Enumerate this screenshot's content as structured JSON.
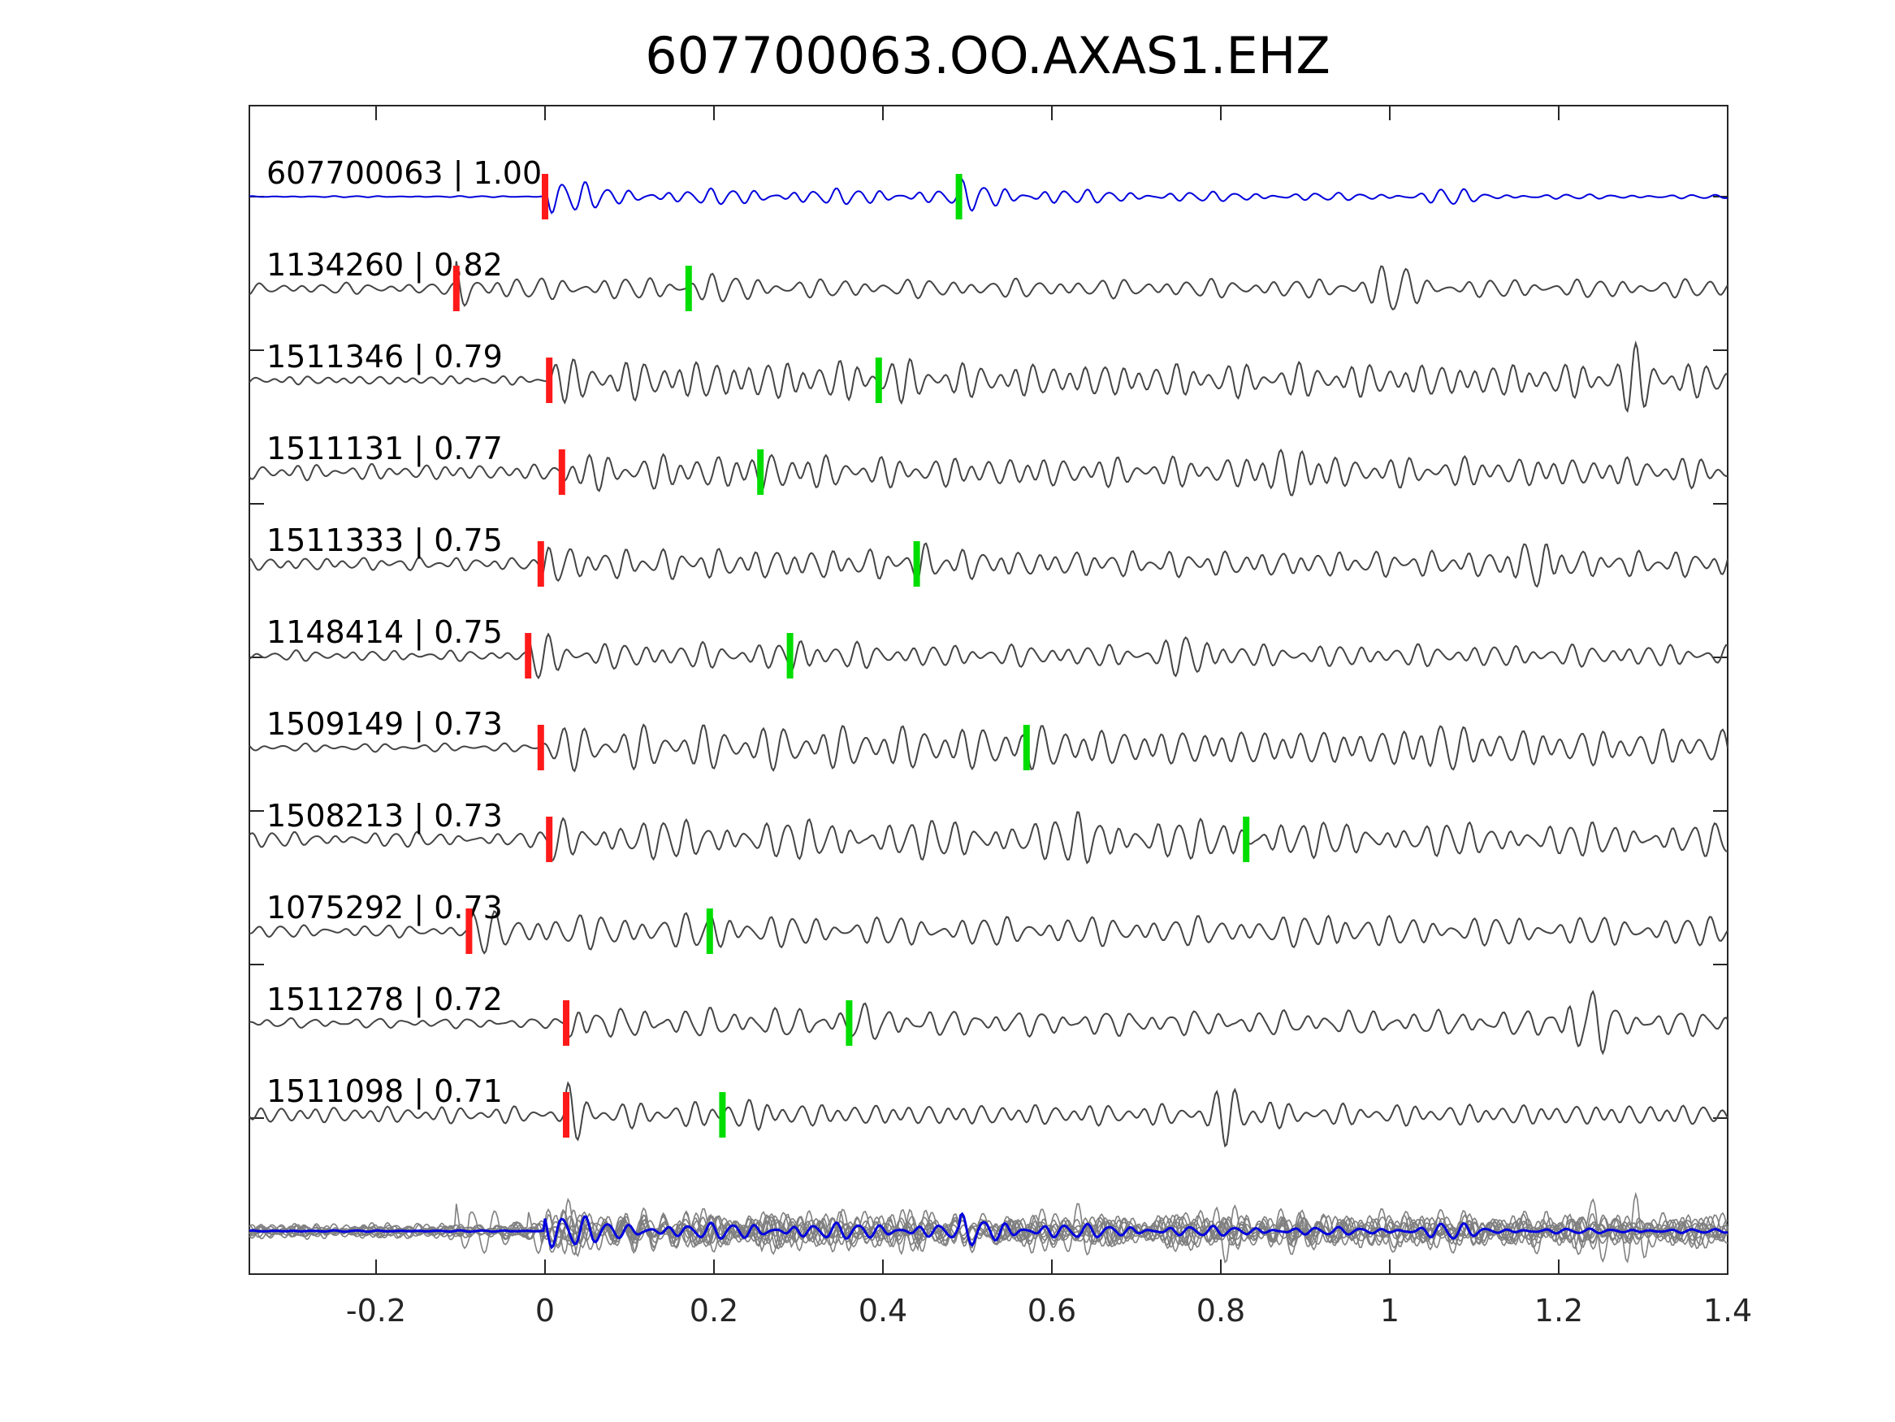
{
  "chart_data": {
    "type": "line",
    "title": "607700063.OO.AXAS1.EHZ",
    "xlabel": "",
    "ylabel": "",
    "xlim": [
      -0.35,
      1.4
    ],
    "x_ticks": [
      -0.2,
      0,
      0.2,
      0.4,
      0.6,
      0.8,
      1,
      1.2,
      1.4
    ],
    "x_tick_labels": [
      "-0.2",
      "0",
      "0.2",
      "0.4",
      "0.6",
      "0.8",
      "1",
      "1.2",
      "1.4"
    ],
    "grid": false,
    "colors": {
      "template": "#0000dd",
      "match": "#444444",
      "stack": "#808080",
      "p_pick": "#ff1a1a",
      "s_pick": "#00dd00",
      "axis": "#262626"
    },
    "traces": [
      {
        "label": "607700063 | 1.00",
        "id": "607700063",
        "cc": 1.0,
        "p_pick": 0.0,
        "s_pick": 0.49,
        "kind": "template"
      },
      {
        "label": "1134260 | 0.82",
        "id": "1134260",
        "cc": 0.82,
        "p_pick": -0.105,
        "s_pick": 0.17,
        "kind": "match"
      },
      {
        "label": "1511346 | 0.79",
        "id": "1511346",
        "cc": 0.79,
        "p_pick": 0.005,
        "s_pick": 0.395,
        "kind": "match"
      },
      {
        "label": "1511131 | 0.77",
        "id": "1511131",
        "cc": 0.77,
        "p_pick": 0.02,
        "s_pick": 0.255,
        "kind": "match"
      },
      {
        "label": "1511333 | 0.75",
        "id": "1511333",
        "cc": 0.75,
        "p_pick": -0.005,
        "s_pick": 0.44,
        "kind": "match"
      },
      {
        "label": "1148414 | 0.75",
        "id": "1148414",
        "cc": 0.75,
        "p_pick": -0.02,
        "s_pick": 0.29,
        "kind": "match"
      },
      {
        "label": "1509149 | 0.73",
        "id": "1509149",
        "cc": 0.73,
        "p_pick": -0.005,
        "s_pick": 0.57,
        "kind": "match"
      },
      {
        "label": "1508213 | 0.73",
        "id": "1508213",
        "cc": 0.73,
        "p_pick": 0.005,
        "s_pick": 0.83,
        "kind": "match"
      },
      {
        "label": "1075292 | 0.73",
        "id": "1075292",
        "cc": 0.73,
        "p_pick": -0.09,
        "s_pick": 0.195,
        "kind": "match"
      },
      {
        "label": "1511278 | 0.72",
        "id": "1511278",
        "cc": 0.72,
        "p_pick": 0.025,
        "s_pick": 0.36,
        "kind": "match"
      },
      {
        "label": "1511098 | 0.71",
        "id": "1511098",
        "cc": 0.71,
        "p_pick": 0.025,
        "s_pick": 0.21,
        "kind": "match"
      }
    ],
    "stack": {
      "kind": "overlay"
    }
  }
}
